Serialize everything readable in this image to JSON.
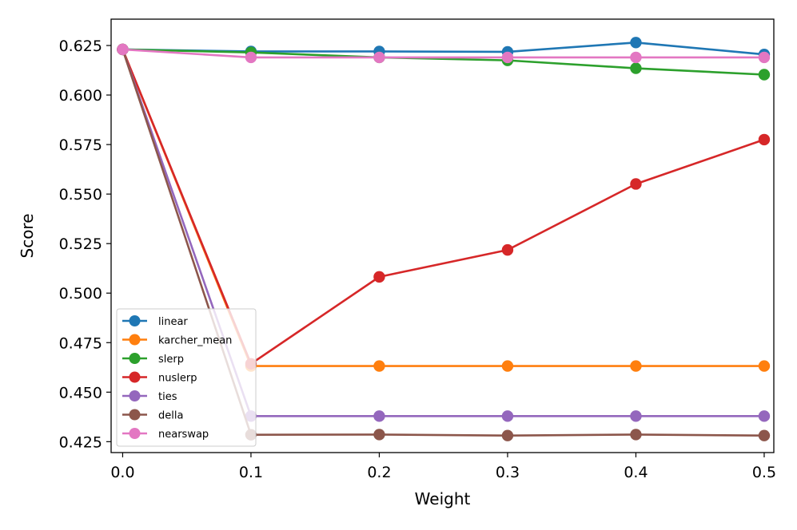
{
  "chart_data": {
    "type": "line",
    "title": "",
    "xlabel": "Weight",
    "ylabel": "Score",
    "x": [
      0.0,
      0.1,
      0.2,
      0.3,
      0.4,
      0.5
    ],
    "xticks": [
      "0.0",
      "0.1",
      "0.2",
      "0.3",
      "0.4",
      "0.5"
    ],
    "yticks": [
      "0.425",
      "0.450",
      "0.475",
      "0.500",
      "0.525",
      "0.550",
      "0.575",
      "0.600",
      "0.625"
    ],
    "ylim": [
      0.4195,
      0.6383
    ],
    "xlim": [
      -0.009,
      0.5075
    ],
    "grid": false,
    "legend_position": "lower-left",
    "series": [
      {
        "name": "linear",
        "color": "#1f77b4",
        "values": [
          0.623,
          0.622,
          0.622,
          0.6218,
          0.6265,
          0.6205
        ]
      },
      {
        "name": "karcher_mean",
        "color": "#ff7f0e",
        "values": [
          0.623,
          0.4632,
          0.4632,
          0.4632,
          0.4632,
          0.4632
        ]
      },
      {
        "name": "slerp",
        "color": "#2ca02c",
        "values": [
          0.623,
          0.6215,
          0.619,
          0.6175,
          0.6135,
          0.6103
        ]
      },
      {
        "name": "nuslerp",
        "color": "#d62728",
        "values": [
          0.623,
          0.4643,
          0.5082,
          0.5218,
          0.5551,
          0.5775
        ]
      },
      {
        "name": "ties",
        "color": "#9467bd",
        "values": [
          0.623,
          0.4379,
          0.4379,
          0.4379,
          0.4379,
          0.4379
        ]
      },
      {
        "name": "della",
        "color": "#8c564b",
        "values": [
          0.623,
          0.4285,
          0.4286,
          0.4281,
          0.4286,
          0.4281
        ]
      },
      {
        "name": "nearswap",
        "color": "#e377c2",
        "values": [
          0.623,
          0.619,
          0.619,
          0.619,
          0.619,
          0.619
        ]
      }
    ]
  }
}
